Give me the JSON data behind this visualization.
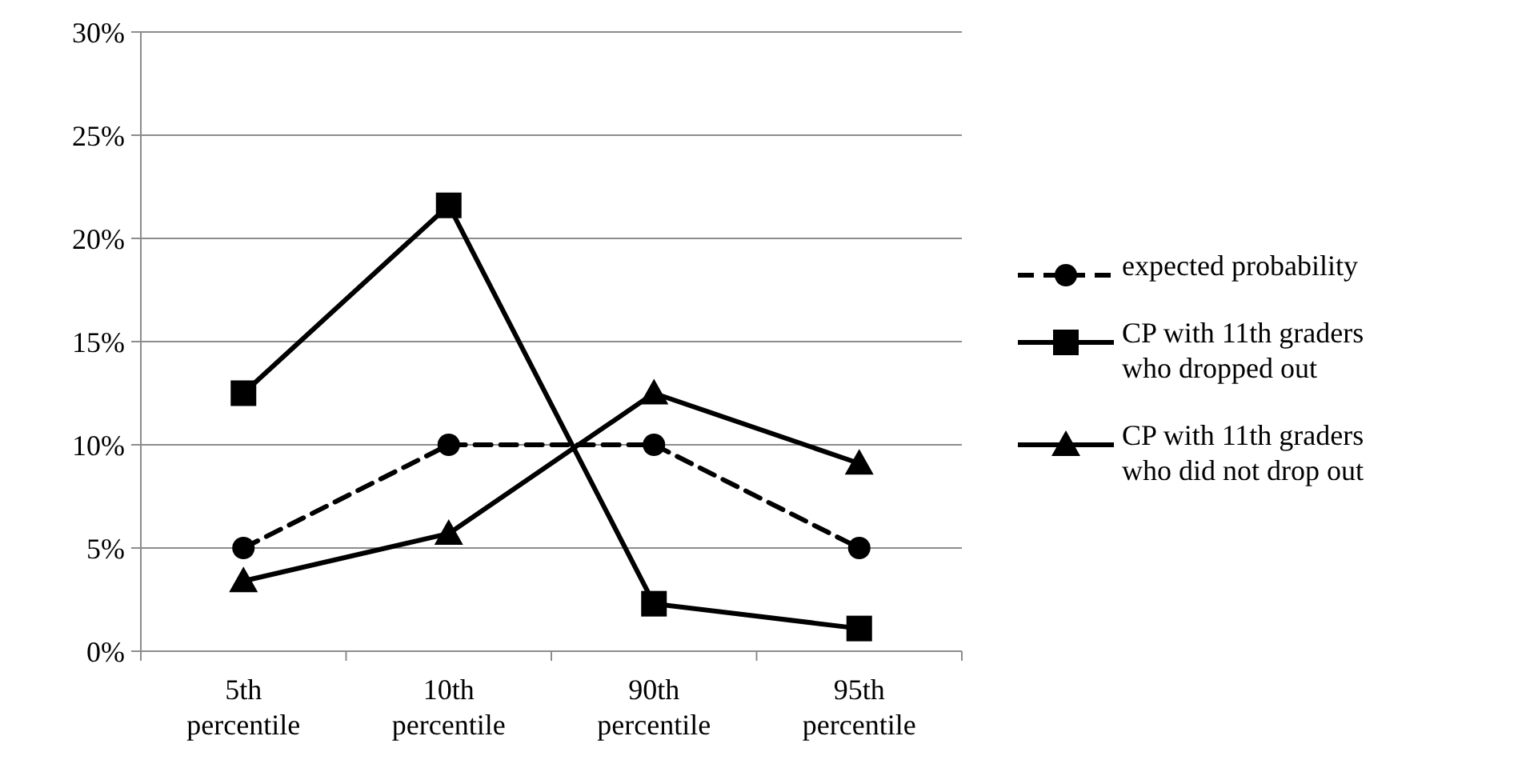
{
  "chart_data": {
    "type": "line",
    "categories": [
      "5th percentile",
      "10th percentile",
      "90th percentile",
      "95th percentile"
    ],
    "series": [
      {
        "name": "expected probability",
        "color": "#000000",
        "values": [
          5,
          10,
          10,
          5
        ],
        "marker": "circle",
        "line_style": "dashed"
      },
      {
        "name": "CP with 11th graders who dropped out",
        "color": "#000000",
        "values": [
          12.5,
          21.6,
          2.3,
          1.1
        ],
        "marker": "square",
        "line_style": "solid"
      },
      {
        "name": "CP with 11th graders who did not drop out",
        "color": "#000000",
        "values": [
          3.4,
          5.7,
          12.5,
          9.1
        ],
        "marker": "triangle",
        "line_style": "solid"
      }
    ],
    "ylim": [
      0,
      30
    ],
    "yticks": [
      {
        "value": 0,
        "label": "0%"
      },
      {
        "value": 5,
        "label": "5%"
      },
      {
        "value": 10,
        "label": "10%"
      },
      {
        "value": 15,
        "label": "15%"
      },
      {
        "value": 20,
        "label": "20%"
      },
      {
        "value": 25,
        "label": "25%"
      },
      {
        "value": 30,
        "label": "30%"
      }
    ],
    "grid": "y",
    "legend": "right"
  }
}
